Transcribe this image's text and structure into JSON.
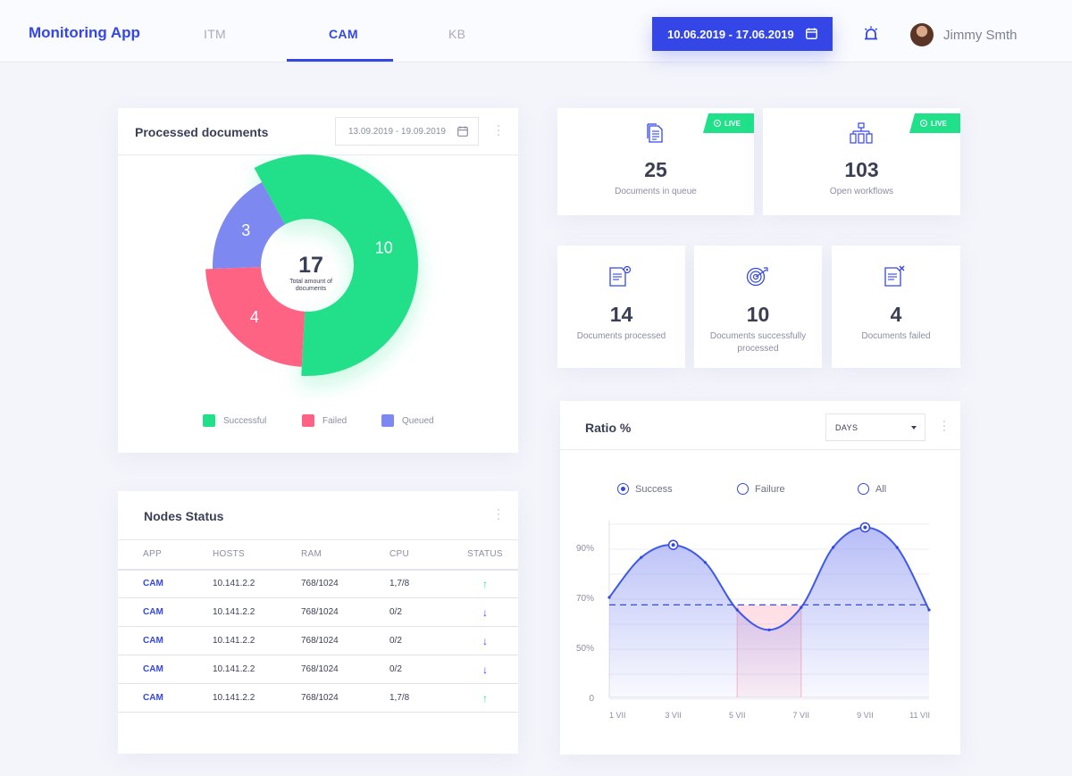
{
  "header": {
    "brand": "Monitoring App",
    "tabs": [
      {
        "label": "ITM",
        "active": false
      },
      {
        "label": "CAM",
        "active": true
      },
      {
        "label": "KB",
        "active": false
      }
    ],
    "date_range": "10.06.2019 - 17.06.2019",
    "user_name": "Jimmy Smth"
  },
  "processed": {
    "title": "Processed documents",
    "date_range": "13.09.2019 - 19.09.2019",
    "total": "17",
    "total_label": "Total amount of documents",
    "legend": [
      "Successful",
      "Failed",
      "Queued"
    ],
    "colors": {
      "successful": "#20e08a",
      "failed": "#ff6384",
      "queued": "#7d89f0"
    }
  },
  "chart_data": [
    {
      "type": "pie",
      "categories": [
        "Successful",
        "Failed",
        "Queued"
      ],
      "values": [
        10,
        4,
        3
      ],
      "center_value": 17,
      "center_label": "Total amount of documents"
    },
    {
      "type": "area",
      "title": "Ratio %",
      "x_ticks": [
        "1 VII",
        "3 VII",
        "5 VII",
        "7 VII",
        "9 VII",
        "11 VII"
      ],
      "y_ticks": [
        "0",
        "50%",
        "70%",
        "90%"
      ],
      "series": [
        {
          "name": "Success",
          "x": [
            1,
            2,
            3,
            4,
            5,
            6,
            7,
            8,
            9,
            10,
            11
          ],
          "values": [
            70,
            86,
            91,
            84,
            65,
            57,
            66,
            90,
            98,
            90,
            65
          ]
        }
      ],
      "threshold": 67,
      "below_threshold_range": [
        "5 VII",
        "7 VII"
      ]
    }
  ],
  "live": {
    "badge": "LIVE"
  },
  "stats_top": [
    {
      "icon": "document-icon",
      "value": "25",
      "label": "Documents in  queue",
      "live": true
    },
    {
      "icon": "workflow-icon",
      "value": "103",
      "label": "Open workflows",
      "live": true
    }
  ],
  "stats_bottom": [
    {
      "icon": "document-gear-icon",
      "value": "14",
      "label": "Documents processed"
    },
    {
      "icon": "target-icon",
      "value": "10",
      "label": "Documents successfully processed"
    },
    {
      "icon": "document-x-icon",
      "value": "4",
      "label": "Documents failed"
    }
  ],
  "nodes": {
    "title": "Nodes Status",
    "columns": [
      "APP",
      "HOSTS",
      "RAM",
      "CPU",
      "STATUS"
    ],
    "rows": [
      {
        "app": "CAM",
        "host": "10.141.2.2",
        "ram": "768/1024",
        "cpu": "1,7/8",
        "status": "up"
      },
      {
        "app": "CAM",
        "host": "10.141.2.2",
        "ram": "768/1024",
        "cpu": "0/2",
        "status": "down"
      },
      {
        "app": "CAM",
        "host": "10.141.2.2",
        "ram": "768/1024",
        "cpu": "0/2",
        "status": "down"
      },
      {
        "app": "CAM",
        "host": "10.141.2.2",
        "ram": "768/1024",
        "cpu": "0/2",
        "status": "down"
      },
      {
        "app": "CAM",
        "host": "10.141.2.2",
        "ram": "768/1024",
        "cpu": "1,7/8",
        "status": "up"
      }
    ]
  },
  "ratio": {
    "title": "Ratio %",
    "period_select": "DAYS",
    "radios": [
      {
        "label": "Success",
        "checked": true
      },
      {
        "label": "Failure",
        "checked": false
      },
      {
        "label": "All",
        "checked": false
      }
    ]
  }
}
